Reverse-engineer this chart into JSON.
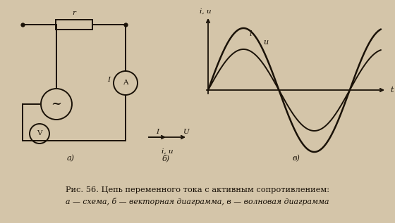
{
  "bg_color": "#d4c5a9",
  "fig_width": 5.6,
  "fig_height": 3.17,
  "text_color": "#1a1208",
  "caption_line1": "Рис. 56. Цепь переменного тока с активным сопротивлением:",
  "caption_line2": "а — схема, б — векторная диаграмма, в — волновая диаграмма",
  "label_a": "а)",
  "label_b": "б)",
  "label_v": "в)",
  "wave_i_label": "i",
  "wave_u_label": "u",
  "wave_iu_axis_label": "i, u",
  "wave_t_axis_label": "t",
  "vector_i_label": "I",
  "vector_u_label": "U",
  "vector_iu_label": "i, u",
  "circuit_r_label": "r",
  "circuit_I_label": "I"
}
